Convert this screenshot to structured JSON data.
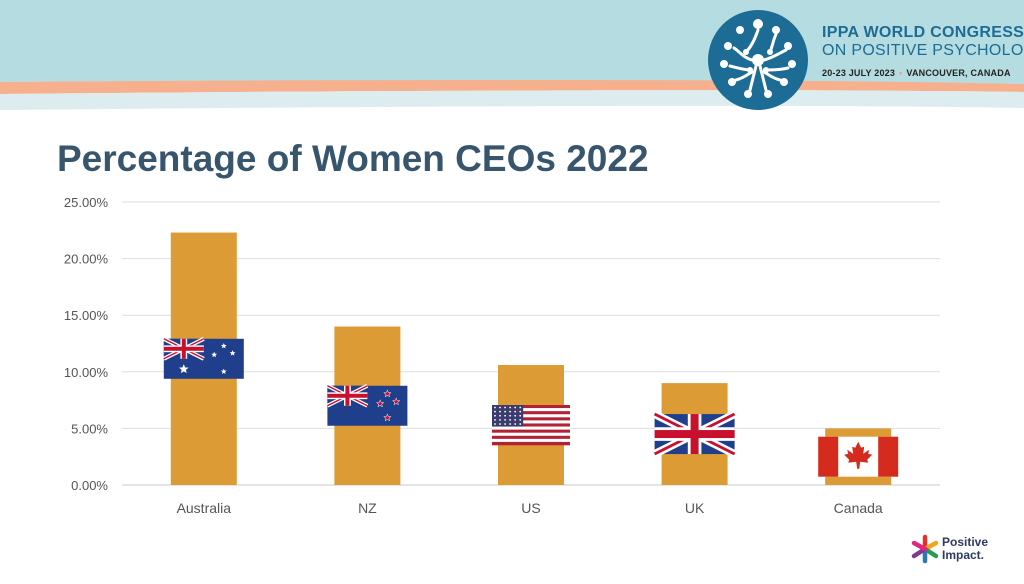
{
  "slide": {
    "title": "Percentage of Women CEOs 2022"
  },
  "header": {
    "congress_line1": "IPPA WORLD CONGRESS",
    "congress_line2": "ON POSITIVE PSYCHOLOGY",
    "dates": "20-23 JULY 2023",
    "location": "VANCOUVER, CANADA",
    "logo_icon": "ippa-logo-icon",
    "colors": {
      "band_light": "#b5dce0",
      "band_peach": "#f7b08e",
      "brand_blue": "#1d6c95"
    }
  },
  "footer": {
    "brand_line1": "Positive",
    "brand_line2": "Impact.",
    "brand_icon": "positive-impact-logo-icon"
  },
  "chart_data": {
    "type": "bar",
    "categories": [
      "Australia",
      "NZ",
      "US",
      "UK",
      "Canada"
    ],
    "values": [
      22.3,
      14.0,
      10.6,
      9.0,
      5.0
    ],
    "flags": [
      "australia-flag-icon",
      "new-zealand-flag-icon",
      "us-flag-icon",
      "uk-flag-icon",
      "canada-flag-icon"
    ],
    "ylim": [
      0,
      25
    ],
    "yticks": [
      "0.00%",
      "5.00%",
      "10.00%",
      "15.00%",
      "20.00%",
      "25.00%"
    ],
    "grid": true,
    "bar_color": "#dd9b36",
    "xlabel": "",
    "ylabel": ""
  }
}
